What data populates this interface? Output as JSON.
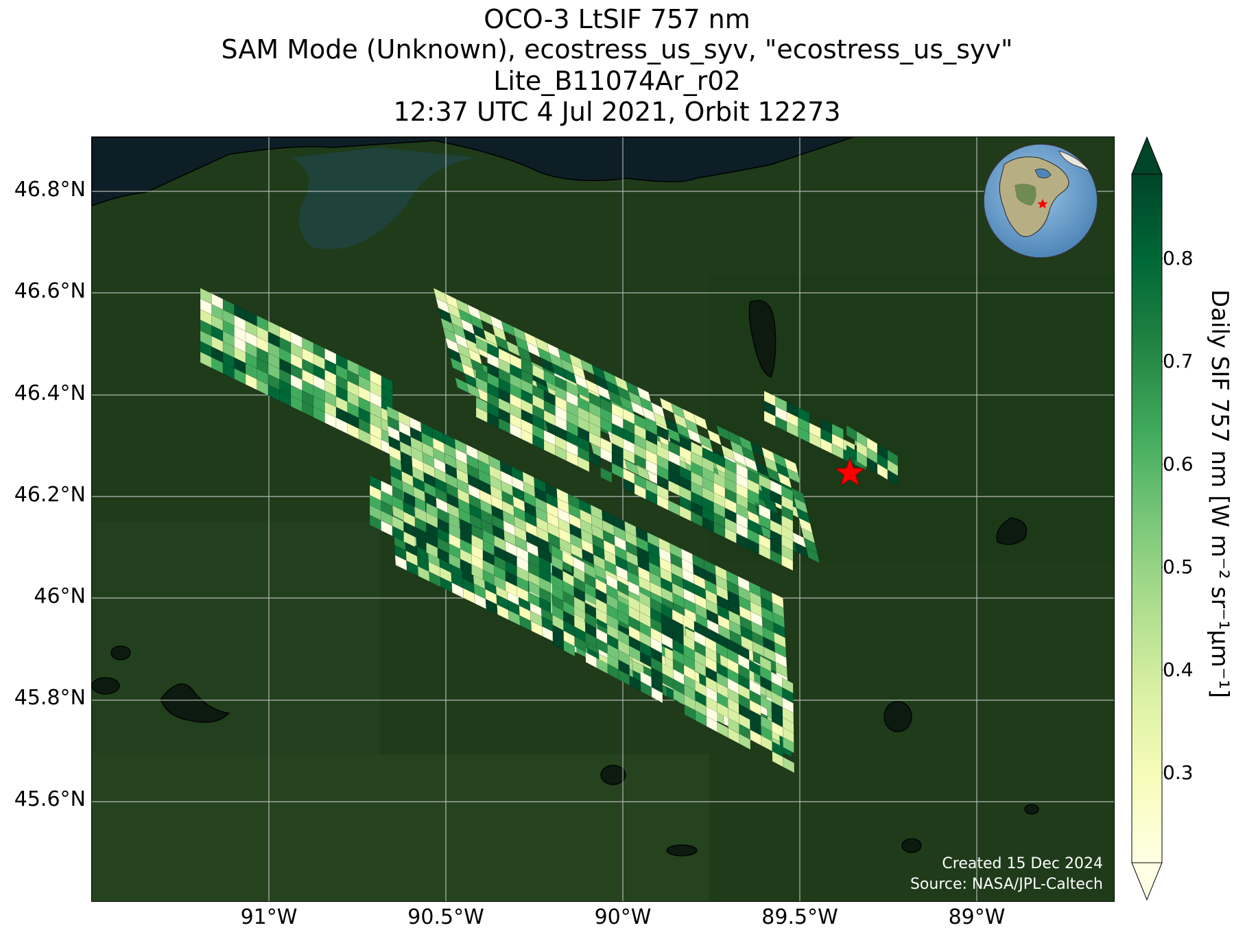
{
  "title": {
    "line1": "OCO-3 LtSIF 757 nm",
    "line2": "SAM Mode (Unknown), ecostress_us_syv, \"ecostress_us_syv\"",
    "line3": "Lite_B11074Ar_r02",
    "line4": "12:37 UTC 4 Jul 2021, Orbit 12273"
  },
  "map": {
    "lat_labels": [
      "46.8°N",
      "46.6°N",
      "46.4°N",
      "46.2°N",
      "46°N",
      "45.8°N",
      "45.6°N"
    ],
    "lon_labels": [
      "91°W",
      "90.5°W",
      "90°W",
      "89.5°W",
      "89°W"
    ],
    "site_marker_icon": "red-star-icon",
    "credit_line1": "Created 15 Dec 2024",
    "credit_line2": "Source: NASA/JPL-Caltech",
    "inset_globe": {
      "region": "North America",
      "marker_icon": "red-star-icon"
    }
  },
  "colorbar": {
    "label": "Daily SIF 757 nm [W m⁻² sr⁻¹μm⁻¹]",
    "ticks": [
      "0.8",
      "0.7",
      "0.6",
      "0.5",
      "0.4",
      "0.3"
    ],
    "colormap": "YlGn",
    "colors": [
      "#ffffe5",
      "#f7fcb9",
      "#d9f0a3",
      "#addd8e",
      "#78c679",
      "#41ab5d",
      "#238443",
      "#006837",
      "#004529"
    ]
  }
}
